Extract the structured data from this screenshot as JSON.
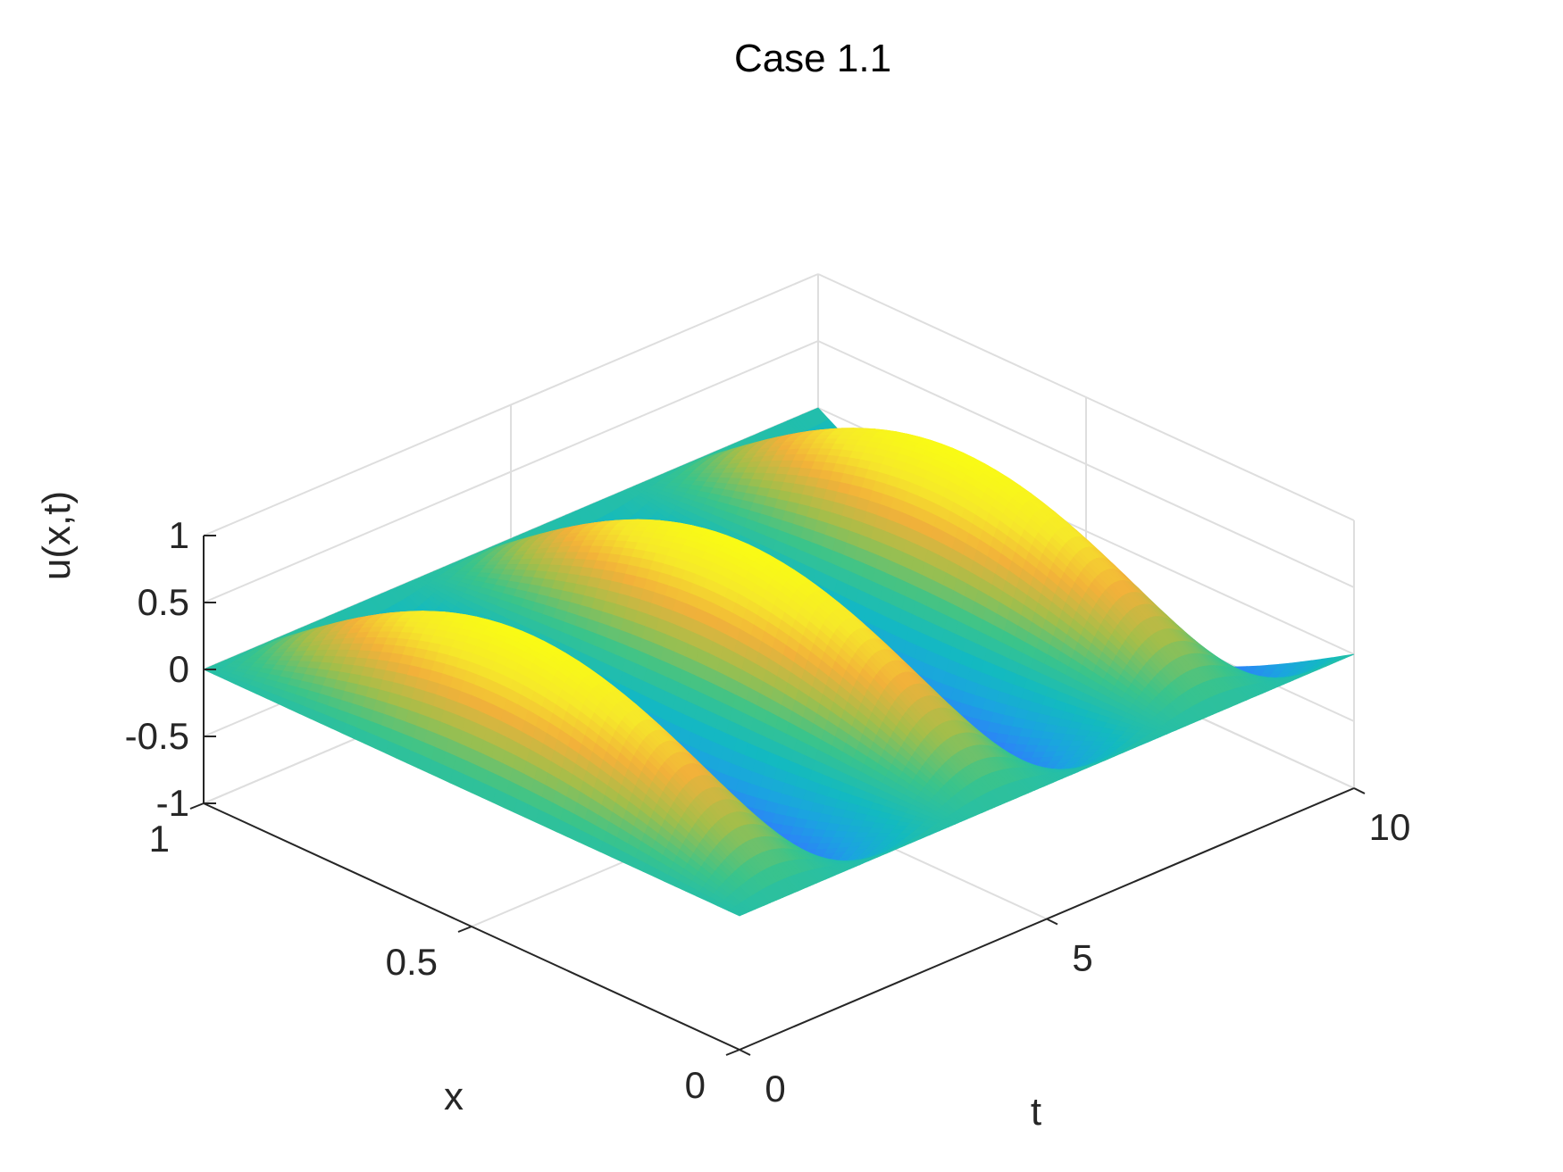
{
  "chart_data": {
    "type": "surface",
    "title": "Case 1.1",
    "xlabel": "x",
    "ylabel": "t",
    "zlabel": "u(x,t)",
    "xlim": [
      0,
      1
    ],
    "tlim": [
      0,
      10
    ],
    "zlim": [
      -1,
      1
    ],
    "x_ticks": [
      "0",
      "0.5",
      "1"
    ],
    "t_ticks": [
      "0",
      "5",
      "10"
    ],
    "z_ticks": [
      "-1",
      "-0.5",
      "0",
      "0.5",
      "1"
    ],
    "grid": true,
    "colormap": "parula",
    "colormap_colors": [
      "#3e26a8",
      "#4653f1",
      "#2f7efb",
      "#1ba4e0",
      "#13bac0",
      "#3bc48a",
      "#a3be4a",
      "#f2b13a",
      "#f6e82a",
      "#f9fb15"
    ],
    "surface_description": "u(x,t) = sin(pi x) sin(2 pi t / 3.5)",
    "grid_color": "#dedede",
    "axis_color": "#262626"
  }
}
